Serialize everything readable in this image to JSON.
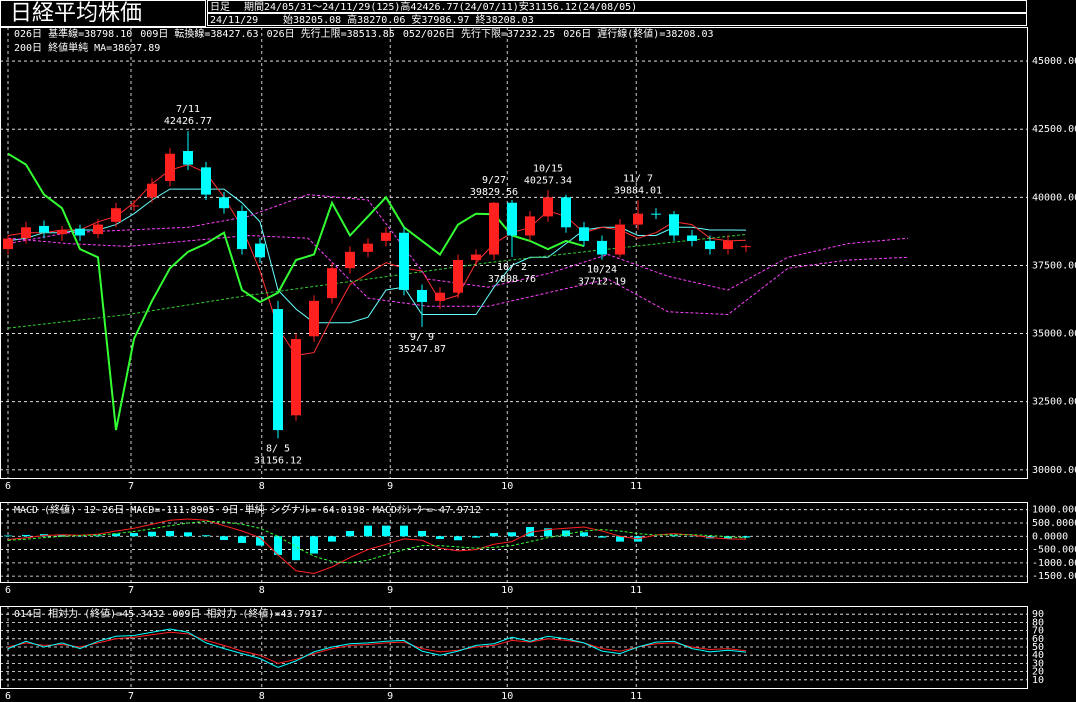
{
  "header": {
    "title": "日経平均株価",
    "mode": "日足",
    "period": "期間24/05/31～24/11/29(125)高42426.77(24/07/11)安31156.12(24/08/05)",
    "date": "24/11/29",
    "ohlc": "始38205.08 高38270.06 安37986.97 終38208.03"
  },
  "chart_data": [
    {
      "type": "candlestick",
      "x": [
        0,
        3,
        6,
        9,
        12,
        15,
        18,
        21,
        24,
        27,
        30,
        33,
        36,
        39,
        42,
        45,
        48,
        51,
        54,
        57,
        60,
        63,
        66,
        69,
        72,
        75,
        78,
        81,
        84,
        87,
        90,
        93,
        96,
        99,
        102,
        105,
        108,
        111,
        114,
        117,
        120,
        123
      ],
      "open": [
        38100,
        38500,
        38950,
        38650,
        38850,
        38650,
        39100,
        39700,
        40000,
        40600,
        41700,
        41100,
        40000,
        39500,
        38300,
        35900,
        32000,
        34900,
        36300,
        37400,
        38000,
        38400,
        38700,
        36600,
        36200,
        36500,
        37700,
        37900,
        39800,
        38600,
        39300,
        40000,
        38900,
        38400,
        37900,
        39000,
        39400,
        39380,
        38600,
        38400,
        38100,
        38205.08
      ],
      "high": [
        38600,
        39100,
        39150,
        38950,
        39000,
        39200,
        39800,
        39900,
        40700,
        41800,
        42426.77,
        41300,
        40200,
        39700,
        38500,
        36200,
        35000,
        36400,
        37600,
        38200,
        38500,
        38900,
        38900,
        36800,
        36700,
        37900,
        38100,
        39829.56,
        39900,
        39500,
        40257.34,
        40100,
        39100,
        38600,
        39200,
        39884.01,
        39600,
        39500,
        38800,
        38600,
        38600,
        38270.06
      ],
      "low": [
        37900,
        38300,
        38500,
        38400,
        38400,
        38500,
        38900,
        39500,
        39800,
        40400,
        41000,
        39900,
        39400,
        37900,
        37600,
        31156.12,
        31800,
        34700,
        36100,
        37200,
        37800,
        38200,
        36400,
        35247.87,
        35900,
        36300,
        37500,
        37700,
        37808.76,
        38400,
        39100,
        38700,
        38200,
        37712.19,
        37800,
        38800,
        39200,
        38400,
        38200,
        37900,
        37900,
        37986.97
      ],
      "close": [
        38487,
        38900,
        38700,
        38800,
        38600,
        39000,
        39600,
        39700,
        40500,
        41600,
        41200,
        40100,
        39600,
        38100,
        37800,
        31458,
        34800,
        36200,
        37400,
        38000,
        38300,
        38700,
        36600,
        36160,
        36500,
        37700,
        37900,
        39800,
        38600,
        39300,
        40000,
        38900,
        38400,
        37900,
        39000,
        39400,
        39380,
        38600,
        38400,
        38100,
        38400,
        38208.03
      ],
      "up_color": "#ff2020",
      "down_color": "#00ffff",
      "series": [
        {
          "name": "026日 基準線=38798.10",
          "color": "#66ffff",
          "dash": false,
          "width": 1,
          "x": [
            0,
            3,
            6,
            9,
            12,
            15,
            18,
            21,
            24,
            27,
            30,
            33,
            36,
            39,
            42,
            45,
            48,
            51,
            54,
            57,
            60,
            63,
            66,
            69,
            72,
            75,
            78,
            81,
            84,
            87,
            90,
            93,
            96,
            99,
            102,
            105,
            108,
            111,
            114,
            117,
            120,
            123
          ],
          "values": [
            38400,
            38500,
            38700,
            38700,
            38800,
            38800,
            39000,
            39400,
            39900,
            40300,
            40300,
            40300,
            40300,
            39800,
            39100,
            36600,
            35900,
            35400,
            35400,
            35400,
            35600,
            36600,
            36700,
            35700,
            35700,
            35700,
            35700,
            36700,
            37500,
            37800,
            37800,
            38300,
            38800,
            38900,
            38900,
            38600,
            38600,
            38900,
            38900,
            38800,
            38800,
            38798.1
          ]
        },
        {
          "name": "009日 転換線=38427.63",
          "color": "#ff3030",
          "dash": false,
          "width": 1,
          "x": [
            0,
            3,
            6,
            9,
            12,
            15,
            18,
            21,
            24,
            27,
            30,
            33,
            36,
            39,
            42,
            45,
            48,
            51,
            54,
            57,
            60,
            63,
            66,
            69,
            72,
            75,
            78,
            81,
            84,
            87,
            90,
            93,
            96,
            99,
            102,
            105,
            108,
            111,
            114,
            117,
            120,
            123
          ],
          "values": [
            38600,
            38700,
            38700,
            38800,
            38800,
            39100,
            39300,
            39800,
            40500,
            41000,
            41200,
            40900,
            40000,
            38900,
            37300,
            35200,
            34200,
            34300,
            35600,
            36800,
            37200,
            37600,
            37400,
            37300,
            36200,
            36400,
            37600,
            38300,
            38700,
            38900,
            39500,
            39300,
            38700,
            38900,
            38800,
            38500,
            38700,
            39100,
            39000,
            38500,
            38400,
            38427.63
          ]
        },
        {
          "name": "026日 先行上限=38513.85",
          "color": "#ff40ff",
          "dash": true,
          "width": 1,
          "x": [
            0,
            10,
            20,
            30,
            40,
            50,
            60,
            70,
            80,
            90,
            100,
            110,
            120,
            130,
            140,
            150
          ],
          "values": [
            38300,
            38700,
            38800,
            38900,
            39300,
            40100,
            39900,
            37000,
            36700,
            37200,
            37900,
            37100,
            36600,
            37800,
            38300,
            38500
          ]
        },
        {
          "name": "052/026日 先行下限=37232.25",
          "color": "#ff40ff",
          "dash": true,
          "width": 1,
          "x": [
            0,
            10,
            20,
            30,
            40,
            50,
            60,
            70,
            80,
            90,
            100,
            110,
            120,
            130,
            140,
            150
          ],
          "values": [
            38500,
            38300,
            38200,
            38400,
            38600,
            38500,
            36300,
            36000,
            36000,
            36500,
            37000,
            35800,
            35700,
            37400,
            37700,
            37800
          ]
        },
        {
          "name": "026日 遅行線(終値)=38208.03",
          "color": "#33ff33",
          "dash": false,
          "width": 2,
          "x": [
            0,
            3,
            6,
            9,
            12,
            15,
            18,
            21,
            24,
            27,
            30,
            33,
            36,
            39,
            42,
            45,
            48,
            51,
            54,
            57,
            60,
            63,
            66,
            69,
            72,
            75,
            78,
            81,
            84,
            87,
            90,
            93,
            96
          ],
          "values": [
            41600,
            41200,
            40100,
            39600,
            38100,
            37800,
            31458,
            34800,
            36200,
            37400,
            38000,
            38300,
            38700,
            36600,
            36160,
            36500,
            37700,
            37900,
            39800,
            38600,
            39300,
            40000,
            38900,
            38400,
            37900,
            39000,
            39400,
            39380,
            38600,
            38400,
            38100,
            38400,
            38208.03
          ]
        },
        {
          "name": "200日 終値単純 MA=38637.89",
          "color": "#33cc33",
          "dash": true,
          "width": 1,
          "x": [
            0,
            20,
            40,
            60,
            80,
            100,
            123
          ],
          "values": [
            35200,
            35700,
            36400,
            37000,
            37600,
            38100,
            38637.89
          ]
        }
      ],
      "annotations": [
        {
          "x": 30,
          "date": "7/11",
          "value": 42426.77,
          "position": "above"
        },
        {
          "x": 45,
          "date": "8/ 5",
          "value": 31156.12,
          "position": "below"
        },
        {
          "x": 69,
          "date": "9/ 9",
          "value": 35247.87,
          "position": "below"
        },
        {
          "x": 81,
          "date": "9/27",
          "value": 39829.56,
          "position": "above"
        },
        {
          "x": 84,
          "date": "10/ 2",
          "value": 37808.76,
          "position": "below"
        },
        {
          "x": 90,
          "date": "10/15",
          "value": 40257.34,
          "position": "above"
        },
        {
          "x": 99,
          "date": "10/24",
          "value": 37712.19,
          "position": "below"
        },
        {
          "x": 105,
          "date": "11/ 7",
          "value": 39884.01,
          "position": "above"
        }
      ],
      "xlim": [
        0,
        170
      ],
      "xticks": [
        {
          "value": 0,
          "label": "6"
        },
        {
          "value": 20.5,
          "label": "7"
        },
        {
          "value": 42.3,
          "label": "8"
        },
        {
          "value": 63.7,
          "label": "9"
        },
        {
          "value": 83.2,
          "label": "10"
        },
        {
          "value": 104.7,
          "label": "11"
        }
      ],
      "ylim": [
        29700,
        46250
      ],
      "yticks": [
        {
          "value": 30000,
          "label": "30000.00"
        },
        {
          "value": 32500,
          "label": "32500.00"
        },
        {
          "value": 35000,
          "label": "35000.00"
        },
        {
          "value": 37500,
          "label": "37500.00"
        },
        {
          "value": 40000,
          "label": "40000.00"
        },
        {
          "value": 42500,
          "label": "42500.00"
        },
        {
          "value": 45000,
          "label": "45000.00"
        }
      ],
      "grid": true
    },
    {
      "type": "line",
      "title": "MACD (終値)",
      "x": [
        0,
        3,
        6,
        9,
        12,
        15,
        18,
        21,
        24,
        27,
        30,
        33,
        36,
        39,
        42,
        45,
        48,
        51,
        54,
        57,
        60,
        63,
        66,
        69,
        72,
        75,
        78,
        81,
        84,
        87,
        90,
        93,
        96,
        99,
        102,
        105,
        108,
        111,
        114,
        117,
        120,
        123
      ],
      "series": [
        {
          "name": "12-26日 MACD=-111.8905",
          "color": "#ff2020",
          "style": "line",
          "dash": false,
          "values": [
            -120,
            -60,
            30,
            60,
            40,
            80,
            200,
            300,
            450,
            600,
            650,
            600,
            400,
            200,
            -50,
            -700,
            -1300,
            -1400,
            -1150,
            -800,
            -500,
            -300,
            -100,
            -150,
            -450,
            -550,
            -500,
            -300,
            -200,
            150,
            250,
            300,
            350,
            200,
            0,
            -100,
            50,
            100,
            50,
            -50,
            -100,
            -111.8905
          ]
        },
        {
          "name": "9日 単純 シグナル=-64.0198",
          "color": "#33ff33",
          "style": "line",
          "dash": true,
          "values": [
            -150,
            -110,
            -50,
            0,
            30,
            50,
            100,
            180,
            280,
            400,
            500,
            560,
            540,
            450,
            300,
            0,
            -400,
            -750,
            -950,
            -1000,
            -900,
            -700,
            -500,
            -350,
            -350,
            -400,
            -450,
            -420,
            -350,
            -200,
            -50,
            80,
            200,
            250,
            200,
            100,
            50,
            60,
            60,
            30,
            -20,
            -64.0198
          ]
        },
        {
          "name": "MACDｵｼﾚｰﾀｰ=-47.9712",
          "color": "#00ffff",
          "style": "bar",
          "dash": false,
          "values": [
            30,
            50,
            80,
            60,
            10,
            30,
            100,
            120,
            170,
            200,
            150,
            40,
            -140,
            -250,
            -350,
            -700,
            -900,
            -650,
            -200,
            200,
            400,
            400,
            400,
            200,
            -100,
            -150,
            -50,
            120,
            150,
            350,
            300,
            220,
            150,
            -50,
            -200,
            -200,
            0,
            40,
            -10,
            -80,
            -80,
            -47.9712
          ]
        }
      ],
      "xlim": [
        0,
        170
      ],
      "xticks": [
        {
          "value": 0,
          "label": "6"
        },
        {
          "value": 20.5,
          "label": "7"
        },
        {
          "value": 42.3,
          "label": "8"
        },
        {
          "value": 63.7,
          "label": "9"
        },
        {
          "value": 83.2,
          "label": "10"
        },
        {
          "value": 104.7,
          "label": "11"
        }
      ],
      "ylim": [
        -1720,
        1290
      ],
      "yticks": [
        {
          "value": 1000,
          "label": "1000.0000"
        },
        {
          "value": 500,
          "label": "500.0000"
        },
        {
          "value": 0,
          "label": "0.0000"
        },
        {
          "value": -500,
          "label": "-500.0000"
        },
        {
          "value": -1000,
          "label": "-1000.0000"
        },
        {
          "value": -1500,
          "label": "-1500.0000"
        }
      ],
      "grid": true
    },
    {
      "type": "line",
      "x": [
        0,
        3,
        6,
        9,
        12,
        15,
        18,
        21,
        24,
        27,
        30,
        33,
        36,
        39,
        42,
        45,
        48,
        51,
        54,
        57,
        60,
        63,
        66,
        69,
        72,
        75,
        78,
        81,
        84,
        87,
        90,
        93,
        96,
        99,
        102,
        105,
        108,
        111,
        114,
        117,
        120,
        123
      ],
      "series": [
        {
          "name": "014日 相対力 (終値)=45.3432",
          "color": "#ff2020",
          "style": "line",
          "dash": false,
          "values": [
            50,
            55,
            52,
            53,
            50,
            55,
            60,
            62,
            65,
            68,
            66,
            58,
            52,
            45,
            40,
            30,
            35,
            42,
            48,
            52,
            53,
            55,
            56,
            48,
            44,
            46,
            50,
            52,
            58,
            56,
            60,
            58,
            55,
            48,
            45,
            50,
            54,
            55,
            50,
            47,
            48,
            45.3432
          ]
        },
        {
          "name": "009日 相対力 (終値)=43.7917",
          "color": "#00ffff",
          "style": "line",
          "dash": false,
          "values": [
            48,
            57,
            50,
            55,
            48,
            57,
            63,
            64,
            68,
            72,
            68,
            55,
            48,
            42,
            36,
            25,
            33,
            44,
            50,
            54,
            55,
            57,
            58,
            45,
            40,
            45,
            52,
            54,
            62,
            57,
            63,
            60,
            55,
            45,
            42,
            50,
            56,
            57,
            48,
            44,
            46,
            43.7917
          ]
        }
      ],
      "xlim": [
        0,
        170
      ],
      "xticks": [
        {
          "value": 0,
          "label": "6"
        },
        {
          "value": 20.5,
          "label": "7"
        },
        {
          "value": 42.3,
          "label": "8"
        },
        {
          "value": 63.7,
          "label": "9"
        },
        {
          "value": 83.2,
          "label": "10"
        },
        {
          "value": 104.7,
          "label": "11"
        }
      ],
      "ylim": [
        0,
        100
      ],
      "yticks": [
        10,
        20,
        30,
        40,
        50,
        60,
        70,
        80,
        90
      ],
      "grid": true
    }
  ]
}
